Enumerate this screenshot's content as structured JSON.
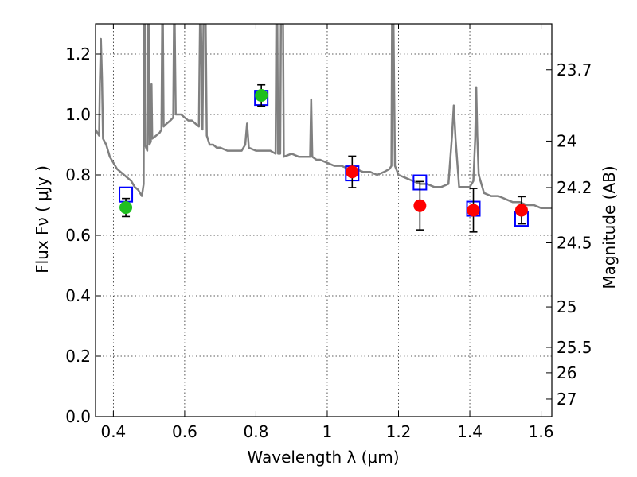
{
  "chart_data": {
    "type": "scatter",
    "title": "",
    "xlabel": "Wavelength  λ (μm)",
    "ylabel": "Flux  Fν  ( μJy )",
    "ylabel_right": "Magnitude (AB)",
    "xlim": [
      0.35,
      1.63
    ],
    "ylim": [
      0.0,
      1.3
    ],
    "grid": true,
    "legend": "none",
    "x_ticks": [
      {
        "value": 0.4,
        "label": "0.4"
      },
      {
        "value": 0.6,
        "label": "0.6"
      },
      {
        "value": 0.8,
        "label": "0.8"
      },
      {
        "value": 1.0,
        "label": "1"
      },
      {
        "value": 1.2,
        "label": "1.2"
      },
      {
        "value": 1.4,
        "label": "1.4"
      },
      {
        "value": 1.6,
        "label": "1.6"
      }
    ],
    "y_ticks": [
      {
        "value": 0.0,
        "label": "0.0"
      },
      {
        "value": 0.2,
        "label": "0.2"
      },
      {
        "value": 0.4,
        "label": "0.4"
      },
      {
        "value": 0.6,
        "label": "0.6"
      },
      {
        "value": 0.8,
        "label": "0.8"
      },
      {
        "value": 1.0,
        "label": "1.0"
      },
      {
        "value": 1.2,
        "label": "1.2"
      }
    ],
    "right_ticks": [
      {
        "flux": 1.148,
        "label": "23.7"
      },
      {
        "flux": 0.912,
        "label": "24"
      },
      {
        "flux": 0.758,
        "label": "24.2"
      },
      {
        "flux": 0.575,
        "label": "24.5"
      },
      {
        "flux": 0.363,
        "label": "25"
      },
      {
        "flux": 0.229,
        "label": "25.5"
      },
      {
        "flux": 0.145,
        "label": "26"
      },
      {
        "flux": 0.058,
        "label": "27"
      }
    ],
    "series": [
      {
        "kind": "line",
        "color": "#808080",
        "points": [
          [
            0.35,
            0.95
          ],
          [
            0.36,
            0.93
          ],
          [
            0.362,
            1.1
          ],
          [
            0.365,
            1.25
          ],
          [
            0.368,
            1.12
          ],
          [
            0.371,
            0.92
          ],
          [
            0.38,
            0.9
          ],
          [
            0.39,
            0.86
          ],
          [
            0.4,
            0.84
          ],
          [
            0.41,
            0.82
          ],
          [
            0.42,
            0.81
          ],
          [
            0.43,
            0.8
          ],
          [
            0.44,
            0.79
          ],
          [
            0.45,
            0.78
          ],
          [
            0.46,
            0.76
          ],
          [
            0.47,
            0.75
          ],
          [
            0.48,
            0.73
          ],
          [
            0.485,
            0.77
          ],
          [
            0.486,
            1.3
          ],
          [
            0.488,
            1.3
          ],
          [
            0.489,
            0.9
          ],
          [
            0.495,
            0.88
          ],
          [
            0.497,
            1.3
          ],
          [
            0.499,
            1.3
          ],
          [
            0.501,
            0.9
          ],
          [
            0.505,
            0.91
          ],
          [
            0.507,
            1.1
          ],
          [
            0.509,
            0.92
          ],
          [
            0.52,
            0.93
          ],
          [
            0.53,
            0.94
          ],
          [
            0.535,
            0.95
          ],
          [
            0.537,
            1.3
          ],
          [
            0.539,
            1.3
          ],
          [
            0.541,
            0.96
          ],
          [
            0.55,
            0.97
          ],
          [
            0.56,
            0.98
          ],
          [
            0.568,
            0.99
          ],
          [
            0.57,
            1.3
          ],
          [
            0.572,
            1.3
          ],
          [
            0.575,
            1.0
          ],
          [
            0.58,
            1.0
          ],
          [
            0.59,
            1.0
          ],
          [
            0.6,
            0.99
          ],
          [
            0.61,
            0.98
          ],
          [
            0.62,
            0.98
          ],
          [
            0.63,
            0.97
          ],
          [
            0.64,
            0.96
          ],
          [
            0.643,
            1.3
          ],
          [
            0.646,
            1.3
          ],
          [
            0.65,
            0.95
          ],
          [
            0.653,
            1.3
          ],
          [
            0.656,
            1.3
          ],
          [
            0.659,
            1.3
          ],
          [
            0.662,
            0.93
          ],
          [
            0.67,
            0.9
          ],
          [
            0.68,
            0.9
          ],
          [
            0.69,
            0.89
          ],
          [
            0.7,
            0.89
          ],
          [
            0.72,
            0.88
          ],
          [
            0.74,
            0.88
          ],
          [
            0.76,
            0.88
          ],
          [
            0.77,
            0.9
          ],
          [
            0.775,
            0.97
          ],
          [
            0.78,
            0.89
          ],
          [
            0.8,
            0.88
          ],
          [
            0.82,
            0.88
          ],
          [
            0.84,
            0.88
          ],
          [
            0.855,
            0.87
          ],
          [
            0.857,
            1.3
          ],
          [
            0.86,
            1.3
          ],
          [
            0.862,
            0.87
          ],
          [
            0.868,
            0.87
          ],
          [
            0.87,
            1.3
          ],
          [
            0.874,
            1.3
          ],
          [
            0.876,
            1.3
          ],
          [
            0.878,
            0.86
          ],
          [
            0.9,
            0.87
          ],
          [
            0.92,
            0.86
          ],
          [
            0.94,
            0.86
          ],
          [
            0.952,
            0.86
          ],
          [
            0.955,
            1.05
          ],
          [
            0.958,
            0.86
          ],
          [
            0.97,
            0.85
          ],
          [
            0.98,
            0.85
          ],
          [
            1.0,
            0.84
          ],
          [
            1.02,
            0.83
          ],
          [
            1.04,
            0.83
          ],
          [
            1.06,
            0.82
          ],
          [
            1.08,
            0.82
          ],
          [
            1.1,
            0.81
          ],
          [
            1.12,
            0.81
          ],
          [
            1.14,
            0.8
          ],
          [
            1.16,
            0.81
          ],
          [
            1.175,
            0.82
          ],
          [
            1.18,
            0.83
          ],
          [
            1.182,
            1.3
          ],
          [
            1.186,
            1.3
          ],
          [
            1.19,
            0.83
          ],
          [
            1.2,
            0.8
          ],
          [
            1.22,
            0.79
          ],
          [
            1.24,
            0.78
          ],
          [
            1.26,
            0.77
          ],
          [
            1.28,
            0.77
          ],
          [
            1.3,
            0.76
          ],
          [
            1.32,
            0.76
          ],
          [
            1.34,
            0.77
          ],
          [
            1.35,
            0.93
          ],
          [
            1.355,
            1.03
          ],
          [
            1.36,
            0.92
          ],
          [
            1.37,
            0.76
          ],
          [
            1.38,
            0.76
          ],
          [
            1.4,
            0.76
          ],
          [
            1.41,
            0.78
          ],
          [
            1.415,
            0.92
          ],
          [
            1.418,
            1.09
          ],
          [
            1.421,
            0.93
          ],
          [
            1.425,
            0.8
          ],
          [
            1.44,
            0.74
          ],
          [
            1.46,
            0.73
          ],
          [
            1.48,
            0.73
          ],
          [
            1.5,
            0.72
          ],
          [
            1.52,
            0.71
          ],
          [
            1.54,
            0.71
          ],
          [
            1.56,
            0.7
          ],
          [
            1.58,
            0.7
          ],
          [
            1.6,
            0.69
          ],
          [
            1.62,
            0.69
          ],
          [
            1.63,
            0.69
          ]
        ]
      },
      {
        "kind": "open-square",
        "color": "#0000ff",
        "points": [
          [
            0.435,
            0.735
          ],
          [
            0.815,
            1.055
          ],
          [
            1.07,
            0.805
          ],
          [
            1.26,
            0.775
          ],
          [
            1.41,
            0.688
          ],
          [
            1.545,
            0.655
          ]
        ]
      },
      {
        "kind": "filled-circle",
        "color": "#1fbf1f",
        "points": [
          {
            "x": 0.435,
            "y": 0.692,
            "err": 0.03
          },
          {
            "x": 0.815,
            "y": 1.063,
            "err": 0.035
          }
        ]
      },
      {
        "kind": "filled-circle",
        "color": "#ff0000",
        "points": [
          {
            "x": 1.07,
            "y": 0.81,
            "err": 0.052
          },
          {
            "x": 1.26,
            "y": 0.698,
            "err": 0.08
          },
          {
            "x": 1.41,
            "y": 0.683,
            "err": 0.072
          },
          {
            "x": 1.545,
            "y": 0.683,
            "err": 0.045
          }
        ]
      }
    ]
  }
}
